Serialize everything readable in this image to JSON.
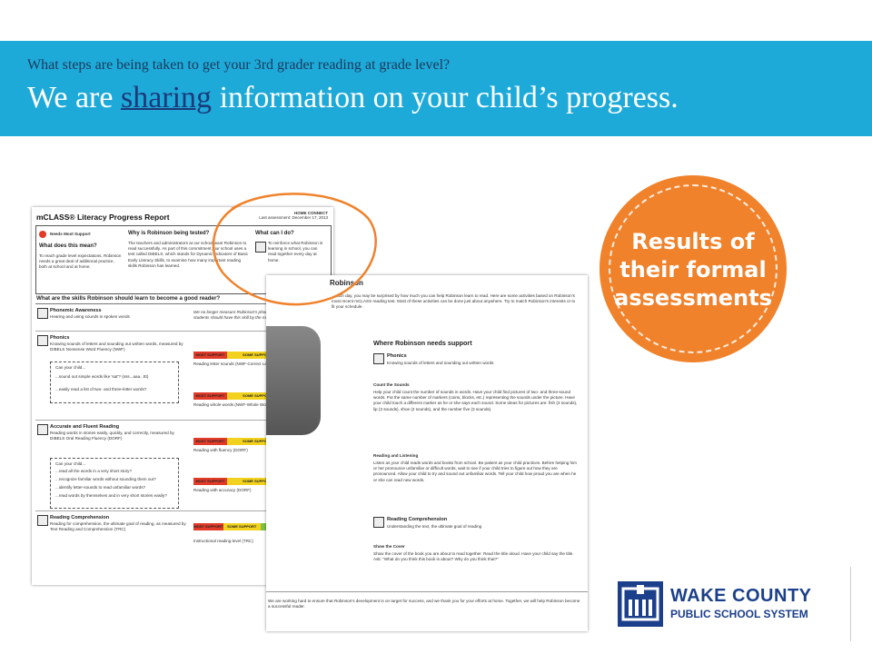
{
  "banner": {
    "question": "What steps are being taken to get your 3rd grader reading at grade level?",
    "headline_pre": "We are ",
    "headline_link": "sharing",
    "headline_post": " information on your child’s progress."
  },
  "callout": {
    "line1": "Results of",
    "line2": "their formal",
    "line3": "assessments",
    "color": "#f0822b"
  },
  "logo": {
    "line1": "WAKE COUNTY",
    "line2": "PUBLIC SCHOOL SYSTEM",
    "color": "#1b3f8a"
  },
  "report": {
    "title": "mCLASS® Literacy Progress Report",
    "meta": "HOME CONNECT",
    "meta2": "Last assessment: December 17, 2013",
    "needs_label": "Needs Most Support",
    "what_mean": "What does this mean?",
    "what_mean_text": "To reach grade level expectations, Robinson needs a great deal of additional practice, both at school and at home.",
    "why_title": "Why is Robinson being tested?",
    "why_text": "The teachers and administrators at our school want Robinson to read successfully. As part of this commitment, our school uses a test called DIBELS, which stands for Dynamic Indicators of Basic Early Literacy Skills, to examine how many important reading skills Robinson has learned.",
    "can_do_title": "What can I do?",
    "can_do_text": "To reinforce what Robinson is learning in school, you can read together every day at home.",
    "skills_title": "What are the skills Robinson should learn to become a good reader?",
    "sections": [
      {
        "name": "Phonemic Awareness",
        "desc": "Hearing and using sounds in spoken words",
        "note": "We no longer measure Robinson's phonemic awareness because students should have this skill by the middle of first grade."
      },
      {
        "name": "Phonics",
        "desc": "Knowing sounds of letters and sounding out written words, measured by DIBELS Nonsense Word Fluency (NWF)",
        "bar1": "Reading letter sounds (NWF-Correct Letter Sounds)",
        "bar2": "Reading whole words (NWF-Whole Words Read)",
        "q1": "Can your child...",
        "q2": "...sound out simple words like 'sat'? (sss...aaa...ttt)",
        "q3": "...easily read a list of two- and three-letter words?"
      },
      {
        "name": "Accurate and Fluent Reading",
        "desc": "Reading words in stories easily, quickly, and correctly, measured by DIBELS Oral Reading Fluency (DORF)",
        "bar1": "Reading with fluency (DORF)",
        "bar2": "Reading with accuracy (DORF)",
        "q1": "Can your child...",
        "q2": "...read all the words in a very short story?",
        "q3": "...recognize familiar words without sounding them out?",
        "q4": "...identify letter-sounds to read unfamiliar words?",
        "q5": "...read words by themselves and in very short stories easily?"
      },
      {
        "name": "Reading Comprehension",
        "desc": "Reading for comprehension, the ultimate goal of reading, as measured by Text Reading and Comprehension (TRC)",
        "bar1": "Instructional reading level (TRC)"
      }
    ],
    "bar_labels": {
      "most": "MOST SUPPORT",
      "some": "SOME SUPPORT",
      "goal": "GOAL",
      "adv": "ADVANCED"
    }
  },
  "support": {
    "name": "Robinson",
    "intro": "...each day, you may be surprised by how much you can help Robinson learn to read. Here are some activities based on Robinson's most recent mCLASS reading test. Most of these activities can be done just about anywhere. Try to match Robinson's interests or to fit your schedule.",
    "heading": "Where Robinson needs support",
    "phonics_title": "Phonics",
    "phonics_desc": "Knowing sounds of letters and sounding out written words",
    "count_title": "Count the Sounds",
    "count_text": "Help your child count the number of sounds in words. Have your child find pictures of two- and three-sound words. Put the same number of markers (coins, blocks, etc.) representing the sounds under the picture. Have your child touch a different marker as he or she says each sound. Some ideas for pictures are: fish (3 sounds), lip (3 sounds), shoe (2 sounds), and the number five (3 sounds).",
    "listen_title": "Reading and Listening",
    "listen_text": "Listen as your child reads words and books from school. Be patient as your child practices. Before helping him or her pronounce unfamiliar or difficult words, wait to see if your child tries to figure out how they are pronounced. Allow your child to try and sound out unfamiliar words. Tell your child how proud you are when he or she can read new words.",
    "rc_title": "Reading Comprehension",
    "rc_desc": "Understanding the text, the ultimate goal of reading",
    "cover_title": "Show the Cover",
    "cover_text": "Show the cover of the book you are about to read together. Read the title aloud. Have your child say the title. Ask: \"What do you think this book is about? Why do you think that?\"",
    "footer": "We are working hard to ensure that Robinson's development is on target for success, and we thank you for your efforts at home. Together, we will help Robinson become a successful reader."
  }
}
